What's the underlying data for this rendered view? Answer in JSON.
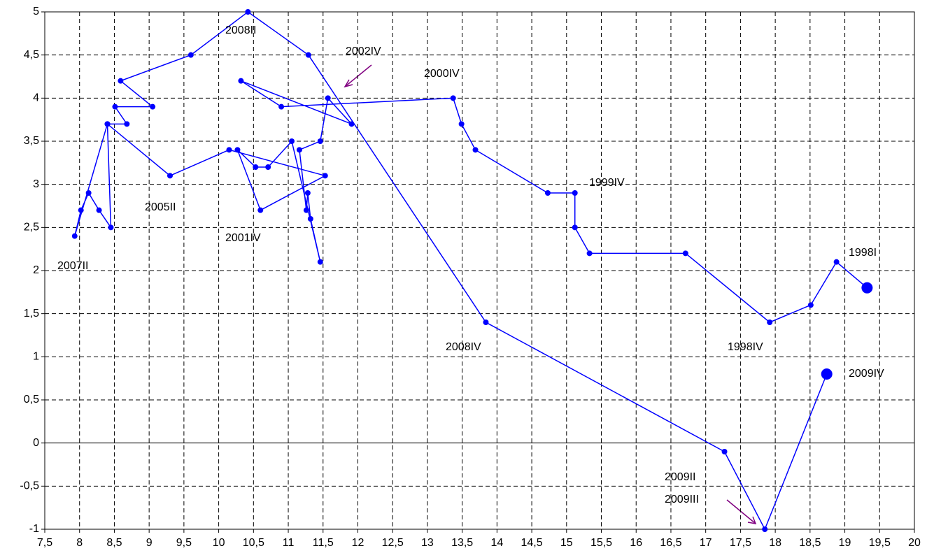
{
  "chart_data": {
    "type": "line",
    "x": [
      19.32,
      18.88,
      18.51,
      17.92,
      16.71,
      15.33,
      15.12,
      15.12,
      14.73,
      13.69,
      13.49,
      13.37,
      10.9,
      10.32,
      11.91,
      11.57,
      11.46,
      11.16,
      11.26,
      11.28,
      11.32,
      11.46,
      11.05,
      10.71,
      10.53,
      10.27,
      10.6,
      11.53,
      10.15,
      9.3,
      8.4,
      8.45,
      8.28,
      8.13,
      8.02,
      7.93,
      8.4,
      8.68,
      8.51,
      9.05,
      8.59,
      9.6,
      10.42,
      11.29,
      13.84,
      17.27,
      17.85,
      18.74
    ],
    "series": [
      {
        "color": "#0000ff",
        "values": [
          1.8,
          2.1,
          1.6,
          1.4,
          2.2,
          2.2,
          2.5,
          2.9,
          2.9,
          3.4,
          3.7,
          4.0,
          3.9,
          4.2,
          3.7,
          4.0,
          3.5,
          3.4,
          2.7,
          2.9,
          2.6,
          2.1,
          3.5,
          3.2,
          3.2,
          3.4,
          2.7,
          3.1,
          3.4,
          3.1,
          3.7,
          2.5,
          2.7,
          2.9,
          2.7,
          2.4,
          3.7,
          3.7,
          3.9,
          3.9,
          4.2,
          4.5,
          5.0,
          4.5,
          1.4,
          -0.1,
          -1,
          0.8
        ]
      }
    ],
    "annotations": [
      "2008II",
      "2002IV",
      "2000IV",
      "1999IV",
      "2005II",
      "2001IV",
      "2007II",
      "1998I",
      "2008IV",
      "1998IV",
      "2009IV",
      "2009II",
      "2009III"
    ],
    "xlim": [
      7.5,
      20
    ],
    "xticks": [
      {
        "value": 7.5,
        "label": "7,5"
      },
      8,
      {
        "value": 8.5,
        "label": "8,5"
      },
      9,
      {
        "value": 9.5,
        "label": "9,5"
      },
      10,
      {
        "value": 10.5,
        "label": "10,5"
      },
      11,
      {
        "value": 11.5,
        "label": "11,5"
      },
      12,
      {
        "value": 12.5,
        "label": "12,5"
      },
      13,
      {
        "value": 13.5,
        "label": "13,5"
      },
      14,
      {
        "value": 14.5,
        "label": "14,5"
      },
      15,
      {
        "value": 15.5,
        "label": "15,5"
      },
      16,
      {
        "value": 16.5,
        "label": "16,5"
      },
      17,
      {
        "value": 17.5,
        "label": "17,5"
      },
      18,
      {
        "value": 18.5,
        "label": "18,5"
      },
      19,
      {
        "value": 19.5,
        "label": "19,5"
      },
      20
    ],
    "ylim": [
      -1,
      5
    ],
    "yticks": [
      5,
      {
        "value": 4.5,
        "label": "4,5"
      },
      4,
      {
        "value": 3.5,
        "label": "3,5"
      },
      3,
      {
        "value": 2.5,
        "label": "2,5"
      },
      2,
      {
        "value": 1.5,
        "label": "1,5"
      },
      1,
      {
        "value": 0.5,
        "label": "0,5"
      },
      0,
      {
        "value": -0.5,
        "label": "-0,5"
      },
      -1
    ],
    "grid": true
  }
}
